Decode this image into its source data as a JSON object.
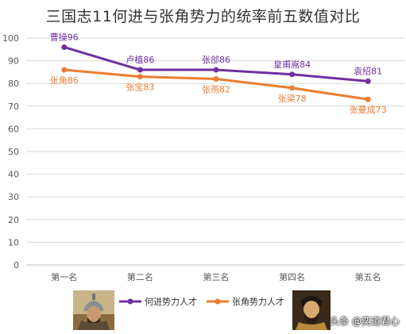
{
  "chart_data": {
    "type": "line",
    "title": "三国志11何进与张角势力的统率前五数值对比",
    "categories": [
      "第一名",
      "第二名",
      "第三名",
      "第四名",
      "第五名"
    ],
    "ylim": [
      0,
      100
    ],
    "yticks": [
      0,
      10,
      20,
      30,
      40,
      50,
      60,
      70,
      80,
      90,
      100
    ],
    "grid": true,
    "legend_position": "bottom",
    "series": [
      {
        "name": "何进势力人才",
        "color": "#7030a0",
        "values": [
          96,
          86,
          86,
          84,
          81
        ],
        "labels": [
          "曹操96",
          "卢植86",
          "张郃86",
          "皇甫嵩84",
          "袁绍81"
        ],
        "label_position": "above"
      },
      {
        "name": "张角势力人才",
        "color": "#ed7d31",
        "values": [
          86,
          83,
          82,
          78,
          73
        ],
        "labels": [
          "张角86",
          "张宝83",
          "张燕82",
          "张梁78",
          "张曼成73"
        ],
        "label_position": "below"
      }
    ]
  },
  "watermark": "头条 @奕道君心"
}
